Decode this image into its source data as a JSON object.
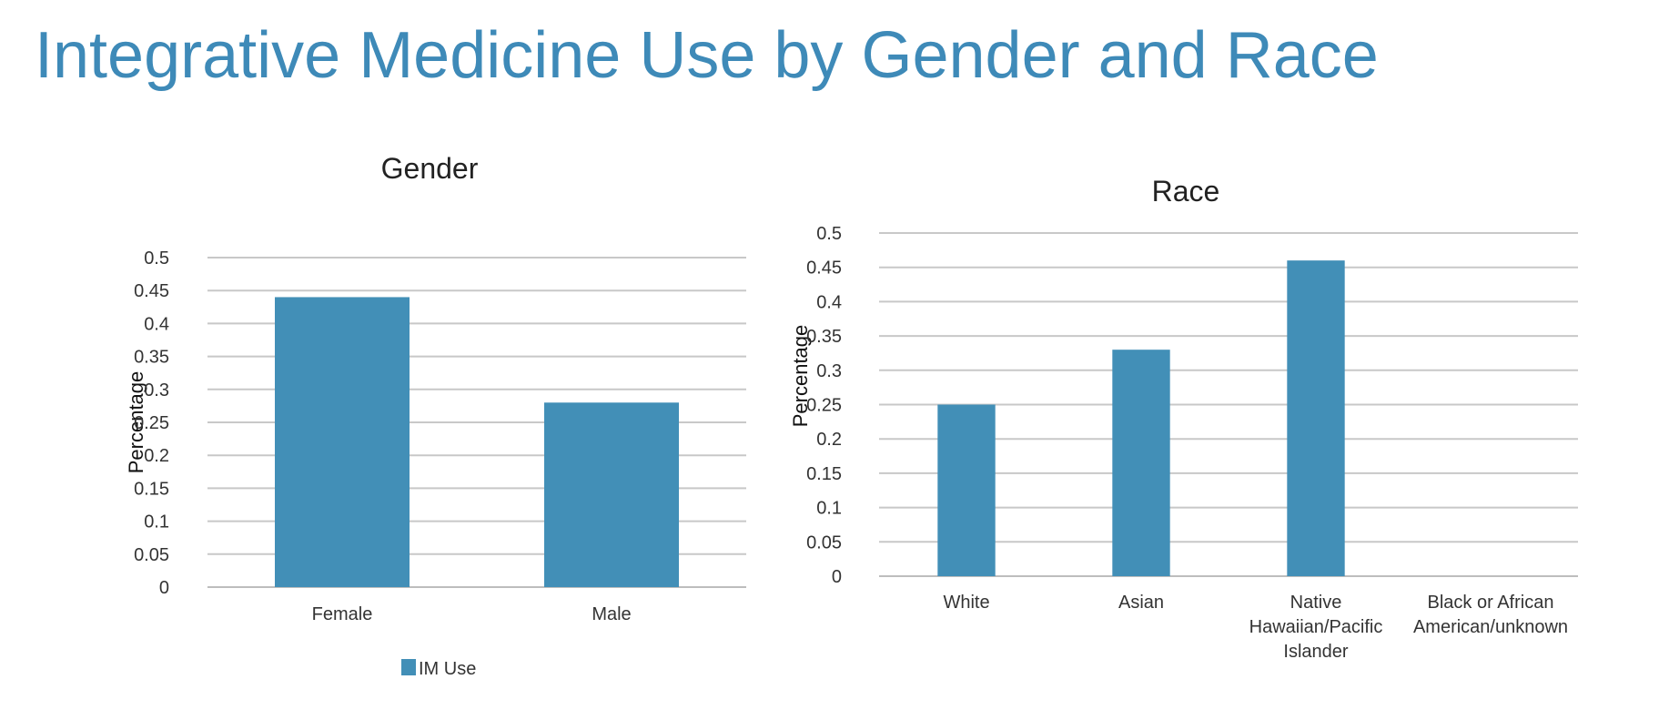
{
  "page": {
    "title": "Integrative Medicine Use by Gender and Race"
  },
  "colors": {
    "title": "#3e8ab8",
    "bar": "#428fb7",
    "grid": "#c8c8c8",
    "axis_text": "#333333",
    "chart_title": "#222222"
  },
  "chart_data": [
    {
      "type": "bar",
      "title": "Gender",
      "ylabel": "Percentage",
      "xlabel": "",
      "categories": [
        "Female",
        "Male"
      ],
      "series": [
        {
          "name": "IM Use",
          "values": [
            0.44,
            0.28
          ]
        }
      ],
      "ylim": [
        0,
        0.5
      ],
      "yticks": [
        "0",
        "0.05",
        "0.1",
        "0.15",
        "0.2",
        "0.25",
        "0.3",
        "0.35",
        "0.4",
        "0.45",
        "0.5"
      ],
      "grid": true,
      "legend": "bottom"
    },
    {
      "type": "bar",
      "title": "Race",
      "ylabel": "Percentage",
      "xlabel": "",
      "categories": [
        [
          "White"
        ],
        [
          "Asian"
        ],
        [
          "Native",
          "Hawaiian/Pacific",
          "Islander"
        ],
        [
          "Black or African",
          "American/unknown"
        ]
      ],
      "series": [
        {
          "values": [
            0.25,
            0.33,
            0.46,
            0
          ]
        }
      ],
      "ylim": [
        0,
        0.5
      ],
      "yticks": [
        "0",
        "0.05",
        "0.1",
        "0.15",
        "0.2",
        "0.25",
        "0.3",
        "0.35",
        "0.4",
        "0.45",
        "0.5"
      ],
      "grid": true,
      "legend": "none"
    }
  ]
}
